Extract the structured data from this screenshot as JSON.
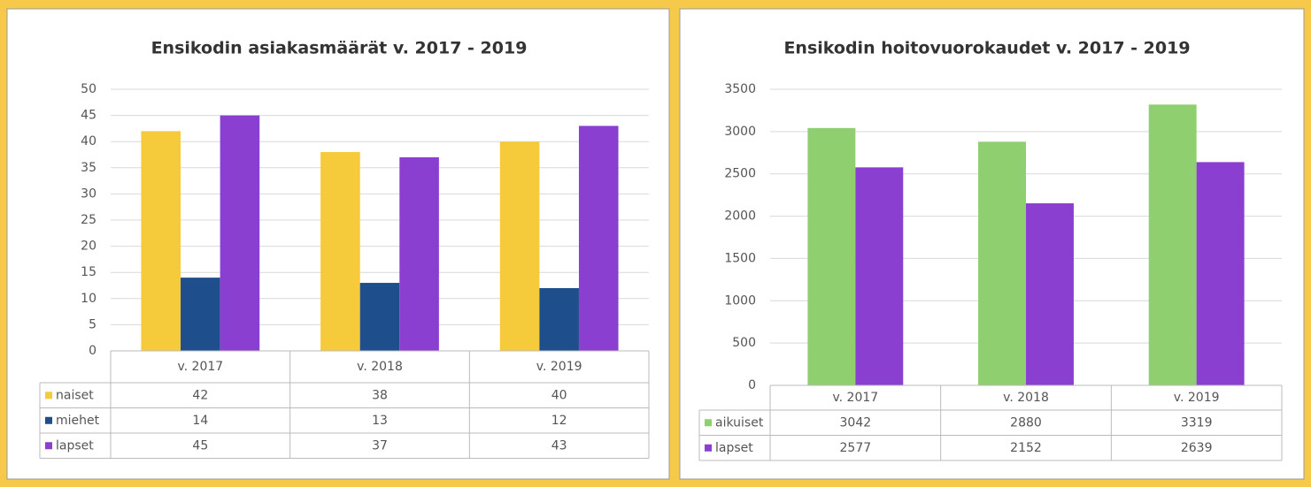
{
  "chart_data": [
    {
      "type": "bar",
      "title": "Ensikodin asiakasmäärät v. 2017 - 2019",
      "categories": [
        "v. 2017",
        "v. 2018",
        "v. 2019"
      ],
      "series": [
        {
          "name": "naiset",
          "color": "#f5cb3c",
          "values": [
            42,
            38,
            40
          ]
        },
        {
          "name": "miehet",
          "color": "#1f4e8c",
          "values": [
            14,
            13,
            12
          ]
        },
        {
          "name": "lapset",
          "color": "#8b3fd0",
          "values": [
            45,
            37,
            43
          ]
        }
      ],
      "ylim": [
        0,
        50
      ],
      "yticks": [
        0,
        5,
        10,
        15,
        20,
        25,
        30,
        35,
        40,
        45,
        50
      ],
      "grid": true
    },
    {
      "type": "bar",
      "title": "Ensikodin hoitovuorokaudet v. 2017 - 2019",
      "categories": [
        "v. 2017",
        "v. 2018",
        "v. 2019"
      ],
      "series": [
        {
          "name": "aikuiset",
          "color": "#8fcf6f",
          "values": [
            3042,
            2880,
            3319
          ]
        },
        {
          "name": "lapset",
          "color": "#8b3fd0",
          "values": [
            2577,
            2152,
            2639
          ]
        }
      ],
      "ylim": [
        0,
        3500
      ],
      "yticks": [
        0,
        500,
        1000,
        1500,
        2000,
        2500,
        3000,
        3500
      ],
      "grid": true
    }
  ]
}
